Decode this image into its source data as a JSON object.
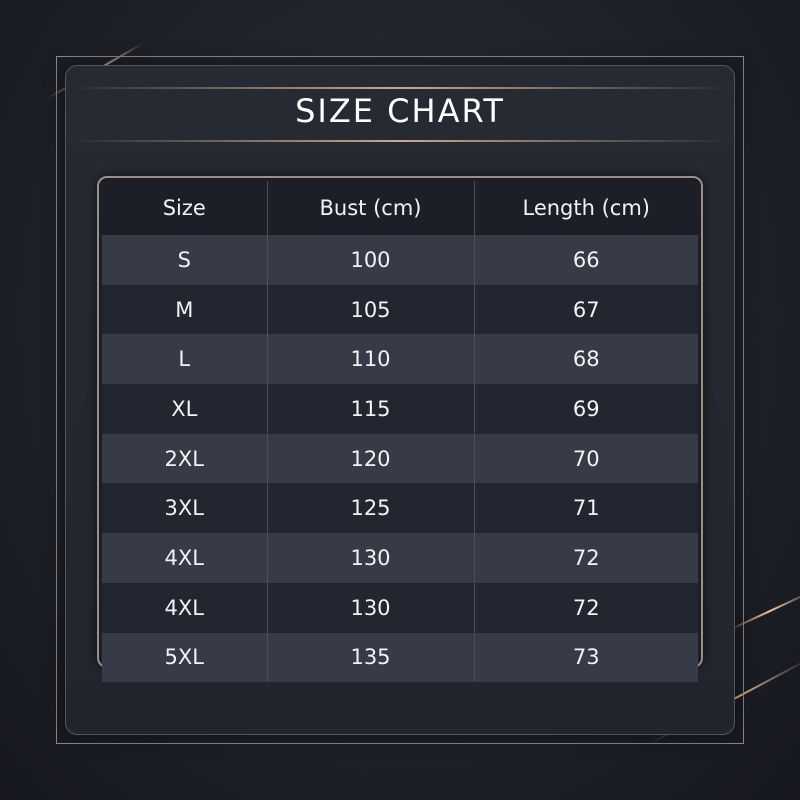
{
  "title": "SIZE CHART",
  "chart_data": {
    "type": "table",
    "title": "SIZE CHART",
    "columns": [
      "Size",
      "Bust (cm)",
      "Length (cm)"
    ],
    "rows": [
      [
        "S",
        "100",
        "66"
      ],
      [
        "M",
        "105",
        "67"
      ],
      [
        "L",
        "110",
        "68"
      ],
      [
        "XL",
        "115",
        "69"
      ],
      [
        "2XL",
        "120",
        "70"
      ],
      [
        "3XL",
        "125",
        "71"
      ],
      [
        "4XL",
        "130",
        "72"
      ],
      [
        "4XL",
        "130",
        "72"
      ],
      [
        "5XL",
        "135",
        "73"
      ]
    ]
  },
  "colors": {
    "background": "#1f222a",
    "accent": "#c9a98a",
    "row_light": "#363b47",
    "row_dark": "#222630"
  }
}
